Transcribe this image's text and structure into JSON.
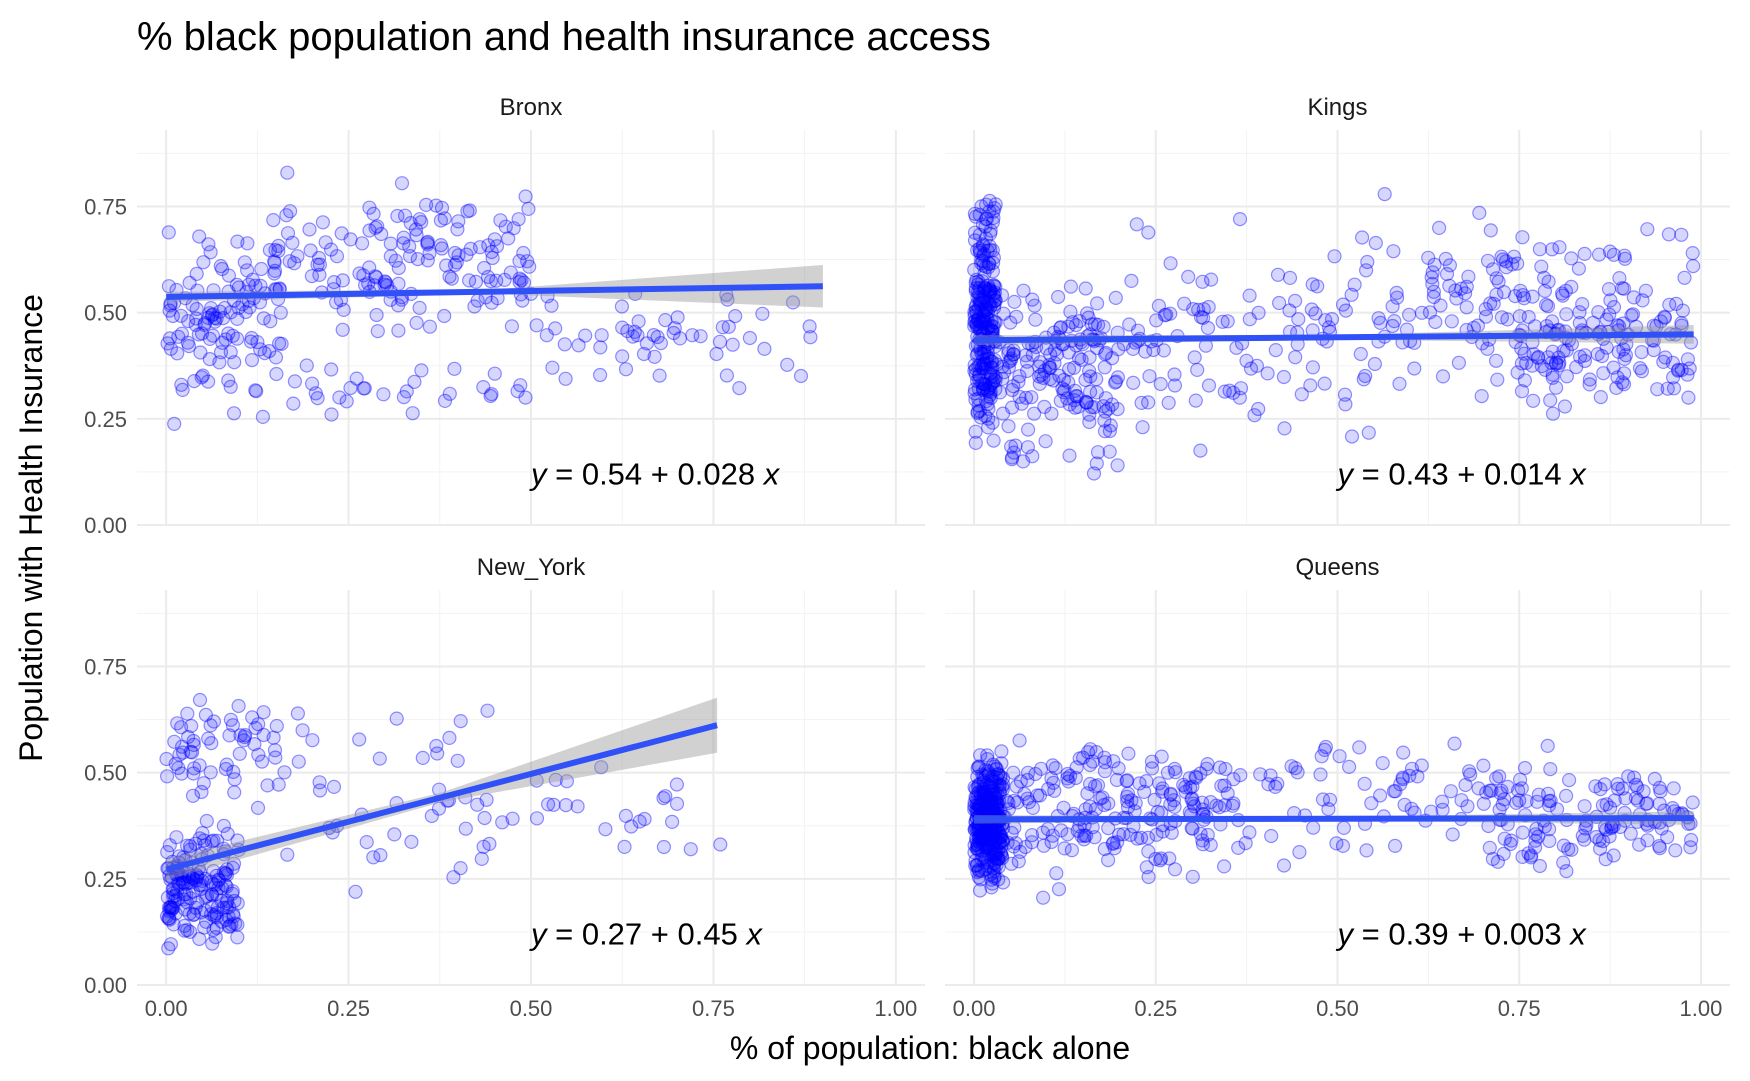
{
  "chart_data": {
    "type": "scatter",
    "title": "% black population and health insurance access",
    "xlabel": "% of population: black alone",
    "ylabel": "Population with Health Insurance",
    "xlim": [
      -0.04,
      1.04
    ],
    "ylim": [
      0.0,
      0.93
    ],
    "x_ticks": [
      "0.00",
      "0.25",
      "0.50",
      "0.75",
      "1.00"
    ],
    "y_ticks": [
      "0.00",
      "0.25",
      "0.50",
      "0.75"
    ],
    "grid": true,
    "legend": "none",
    "colors": {
      "points": "#0000ff",
      "fit_line": "#3050f8",
      "confidence_band": "#999999"
    },
    "facets": [
      {
        "name": "Bronx",
        "equation": {
          "y": "y",
          "rest": " = 0.54 + 0.028 ",
          "x": "x"
        },
        "fit": {
          "intercept": 0.537,
          "slope": 0.028,
          "x_range": [
            0.0,
            0.9
          ],
          "se_ends": [
            0.012,
            0.05
          ]
        },
        "cloud": {
          "seed": 11,
          "clusters": [
            {
              "n": 120,
              "x": [
                0.0,
                0.16
              ],
              "y": [
                0.21,
                0.76
              ]
            },
            {
              "n": 150,
              "x": [
                0.14,
                0.5
              ],
              "y": [
                0.4,
                0.84
              ]
            },
            {
              "n": 30,
              "x": [
                0.16,
                0.5
              ],
              "y": [
                0.24,
                0.4
              ]
            },
            {
              "n": 55,
              "x": [
                0.5,
                0.9
              ],
              "y": [
                0.26,
                0.62
              ]
            }
          ]
        }
      },
      {
        "name": "Kings",
        "equation": {
          "y": "y",
          "rest": " = 0.43 + 0.014 ",
          "x": "x"
        },
        "fit": {
          "intercept": 0.435,
          "slope": 0.014,
          "x_range": [
            0.0,
            0.99
          ],
          "se_ends": [
            0.012,
            0.022
          ]
        },
        "cloud": {
          "seed": 23,
          "clusters": [
            {
              "n": 240,
              "x": [
                0.0,
                0.03
              ],
              "y": [
                0.1,
                0.86
              ]
            },
            {
              "n": 170,
              "x": [
                0.03,
                0.2
              ],
              "y": [
                0.07,
                0.66
              ]
            },
            {
              "n": 110,
              "x": [
                0.2,
                0.55
              ],
              "y": [
                0.07,
                0.8
              ]
            },
            {
              "n": 160,
              "x": [
                0.55,
                0.99
              ],
              "y": [
                0.23,
                0.82
              ]
            },
            {
              "n": 90,
              "x": [
                0.75,
                0.99
              ],
              "y": [
                0.26,
                0.55
              ]
            }
          ]
        }
      },
      {
        "name": "New_York",
        "equation": {
          "y": "y",
          "rest": " = 0.27 + 0.45 ",
          "x": "x"
        },
        "fit": {
          "intercept": 0.272,
          "slope": 0.45,
          "x_range": [
            0.0,
            0.755
          ],
          "se_ends": [
            0.025,
            0.065
          ]
        },
        "cloud": {
          "seed": 37,
          "clusters": [
            {
              "n": 170,
              "x": [
                0.0,
                0.1
              ],
              "y": [
                0.04,
                0.4
              ]
            },
            {
              "n": 55,
              "x": [
                0.0,
                0.14
              ],
              "y": [
                0.36,
                0.74
              ]
            },
            {
              "n": 50,
              "x": [
                0.14,
                0.45
              ],
              "y": [
                0.14,
                0.77
              ]
            },
            {
              "n": 25,
              "x": [
                0.45,
                0.76
              ],
              "y": [
                0.24,
                0.58
              ]
            }
          ]
        }
      },
      {
        "name": "Queens",
        "equation": {
          "y": "y",
          "rest": " = 0.39 + 0.003 ",
          "x": "x"
        },
        "fit": {
          "intercept": 0.39,
          "slope": 0.003,
          "x_range": [
            0.0,
            0.99
          ],
          "se_ends": [
            0.01,
            0.016
          ]
        },
        "cloud": {
          "seed": 53,
          "clusters": [
            {
              "n": 320,
              "x": [
                0.0,
                0.04
              ],
              "y": [
                0.18,
                0.6
              ]
            },
            {
              "n": 200,
              "x": [
                0.04,
                0.35
              ],
              "y": [
                0.19,
                0.64
              ]
            },
            {
              "n": 70,
              "x": [
                0.35,
                0.7
              ],
              "y": [
                0.25,
                0.66
              ]
            },
            {
              "n": 140,
              "x": [
                0.7,
                0.99
              ],
              "y": [
                0.23,
                0.58
              ]
            }
          ]
        }
      }
    ]
  }
}
